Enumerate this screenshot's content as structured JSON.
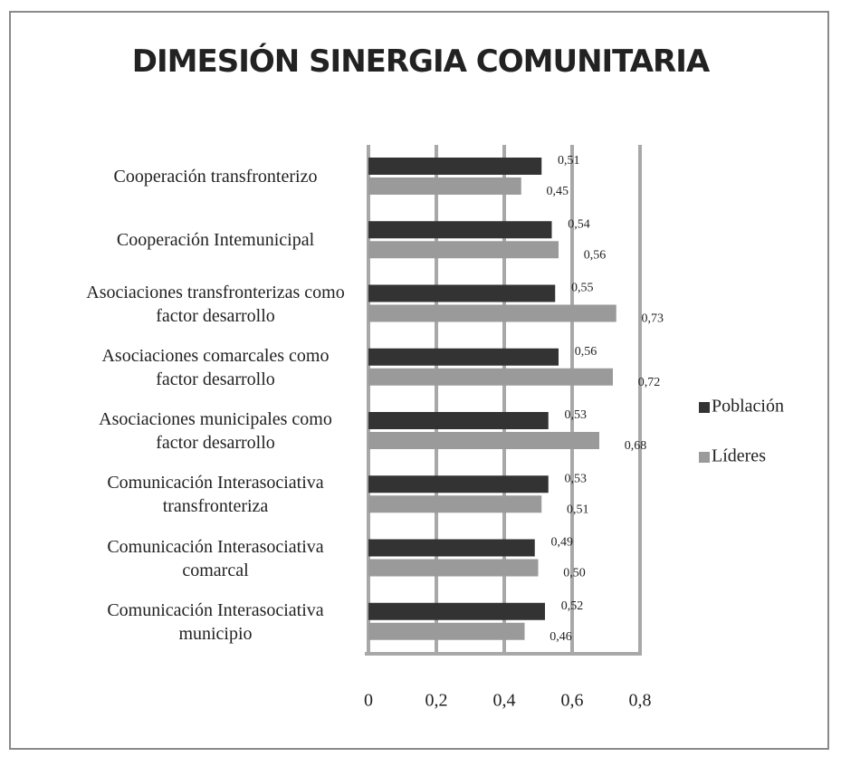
{
  "chart_data": {
    "type": "barh",
    "title": "DIMESIÓN SINERGIA COMUNITARIA",
    "categories": [
      "Cooperación transfronterizo",
      "Cooperación Intemunicipal",
      "Asociaciones transfronterizas como\nfactor desarrollo",
      "Asociaciones comarcales como\nfactor desarrollo",
      "Asociaciones municipales como\nfactor desarrollo",
      "Comunicación Interasociativa\ntransfronteriza",
      "Comunicación Interasociativa\ncomarcal",
      "Comunicación Interasociativa\nmunicipio"
    ],
    "series": [
      {
        "name": "Población",
        "color": "#333333",
        "values": [
          0.51,
          0.54,
          0.55,
          0.56,
          0.53,
          0.53,
          0.49,
          0.52
        ],
        "value_labels": [
          "0,51",
          "0,54",
          "0,55",
          "0,56",
          "0,53",
          "0,53",
          "0,49",
          "0,52"
        ]
      },
      {
        "name": "Líderes",
        "color": "#9a9a9a",
        "values": [
          0.45,
          0.56,
          0.73,
          0.72,
          0.68,
          0.51,
          0.5,
          0.46
        ],
        "value_labels": [
          "0,45",
          "0,56",
          "0,73",
          "0,72",
          "0,68",
          "0,51",
          "0,50",
          "0,46"
        ]
      }
    ],
    "xlim": [
      0,
      0.8
    ],
    "xticks": [
      0,
      {
        "value": 0.2,
        "label": "0,2"
      },
      {
        "value": 0.4,
        "label": "0,4"
      },
      {
        "value": 0.6,
        "label": "0,6"
      },
      {
        "value": 0.8,
        "label": "0,8"
      }
    ],
    "grid": true,
    "legend": "right"
  }
}
